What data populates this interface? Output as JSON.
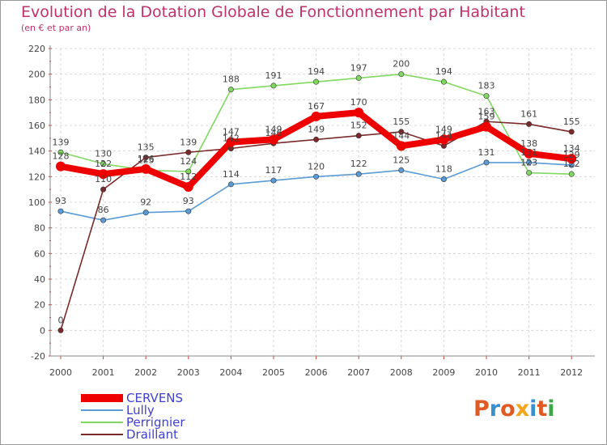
{
  "header": {
    "title": "Evolution de la Dotation Globale de Fonctionnement par Habitant",
    "subtitle": "(en € et par an)"
  },
  "brand": {
    "text": "Proxiti",
    "colors": [
      "#e05a24",
      "#3a8fd0",
      "#e05a24",
      "#f2a51a",
      "#3a8fd0",
      "#e05a24",
      "#3fa64a"
    ]
  },
  "chart_data": {
    "type": "line",
    "title": "Evolution de la Dotation Globale de Fonctionnement par Habitant",
    "subtitle": "(en € et par an)",
    "xlabel": "",
    "ylabel": "",
    "categories": [
      "2000",
      "2001",
      "2002",
      "2003",
      "2004",
      "2005",
      "2006",
      "2007",
      "2008",
      "2009",
      "2010",
      "2011",
      "2012"
    ],
    "ylim": [
      -20,
      220
    ],
    "yticks": [
      -20,
      0,
      20,
      40,
      60,
      80,
      100,
      120,
      140,
      160,
      180,
      200,
      220
    ],
    "grid": true,
    "legend_position": "bottom-left",
    "series": [
      {
        "name": "Lully",
        "color": "#5b9bd5",
        "values": [
          93,
          86,
          92,
          93,
          114,
          117,
          120,
          122,
          125,
          118,
          131,
          131,
          129
        ]
      },
      {
        "name": "Perrignier",
        "color": "#80d860",
        "values": [
          139,
          130,
          125,
          124,
          188,
          191,
          194,
          197,
          200,
          194,
          183,
          123,
          122
        ]
      },
      {
        "name": "Draillant",
        "color": "#7a2a2a",
        "values": [
          0,
          110,
          135,
          139,
          142,
          146,
          149,
          152,
          155,
          144,
          163,
          161,
          155
        ]
      },
      {
        "name": "CERVENS",
        "color": "#ee0000",
        "values": [
          128,
          122,
          126,
          112,
          147,
          149,
          167,
          170,
          144,
          149,
          159,
          138,
          134
        ]
      }
    ]
  },
  "legend": {
    "items": [
      {
        "label": "CERVENS",
        "color": "#ee0000"
      },
      {
        "label": "Lully",
        "color": "#5b9bd5"
      },
      {
        "label": "Perrignier",
        "color": "#80d860"
      },
      {
        "label": "Draillant",
        "color": "#7a2a2a"
      }
    ]
  }
}
